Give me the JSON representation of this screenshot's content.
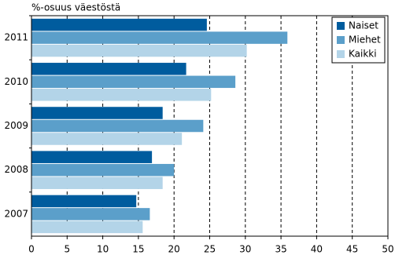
{
  "chart_data": {
    "type": "hbar",
    "y_axis_title": "%-osuus väestöstä",
    "categories": [
      "2011",
      "2010",
      "2009",
      "2008",
      "2007"
    ],
    "series": [
      {
        "name": "Naiset",
        "color": "#005c9e",
        "values": [
          24.6,
          21.7,
          18.4,
          16.9,
          14.7
        ]
      },
      {
        "name": "Miehet",
        "color": "#5b9fca",
        "values": [
          35.9,
          28.6,
          24.1,
          20.0,
          16.6
        ]
      },
      {
        "name": "Kaikki",
        "color": "#b3d4e8",
        "values": [
          30.2,
          25.2,
          21.1,
          18.4,
          15.6
        ]
      }
    ],
    "xlim": [
      0,
      50
    ],
    "xticks": [
      0,
      5,
      10,
      15,
      20,
      25,
      30,
      35,
      40,
      45,
      50
    ],
    "grid": true,
    "legend": "upper-right"
  }
}
